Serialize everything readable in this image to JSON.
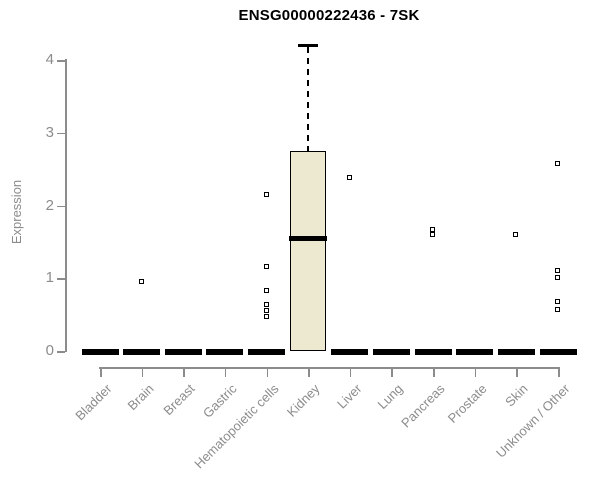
{
  "chart_data": {
    "type": "boxplot",
    "title": "ENSG00000222436 - 7SK",
    "ylabel": "Expression",
    "xlabel": "",
    "yticks": [
      0,
      1,
      2,
      3,
      4
    ],
    "ylim": [
      0,
      4.4
    ],
    "grid": false,
    "legend": "none",
    "box_fill": "#EDE8D0",
    "box_stroke": "#000000",
    "axis_color": "#8c8c8c",
    "tick_text_color": "#8c8c8c",
    "title_color": "#000000",
    "categories": [
      "Bladder",
      "Brain",
      "Breast",
      "Gastric",
      "Hematopoietic cells",
      "Kidney",
      "Liver",
      "Lung",
      "Pancreas",
      "Prostate",
      "Skin",
      "Unknown / Other"
    ],
    "boxes": [
      {
        "category": "Bladder",
        "min": 0,
        "q1": 0,
        "median": 0,
        "q3": 0,
        "max": 0,
        "outliers": []
      },
      {
        "category": "Brain",
        "min": 0,
        "q1": 0,
        "median": 0,
        "q3": 0,
        "max": 0,
        "outliers": [
          0.95
        ]
      },
      {
        "category": "Breast",
        "min": 0,
        "q1": 0,
        "median": 0,
        "q3": 0,
        "max": 0,
        "outliers": []
      },
      {
        "category": "Gastric",
        "min": 0,
        "q1": 0,
        "median": 0,
        "q3": 0,
        "max": 0,
        "outliers": []
      },
      {
        "category": "Hematopoietic cells",
        "min": 0,
        "q1": 0,
        "median": 0,
        "q3": 0,
        "max": 0,
        "outliers": [
          2.15,
          1.15,
          0.83,
          0.63,
          0.55,
          0.47
        ]
      },
      {
        "category": "Kidney",
        "min": 0,
        "q1": 0,
        "median": 1.55,
        "q3": 2.75,
        "max": 4.2,
        "outliers": []
      },
      {
        "category": "Liver",
        "min": 0,
        "q1": 0,
        "median": 0,
        "q3": 0,
        "max": 0,
        "outliers": [
          2.38
        ]
      },
      {
        "category": "Lung",
        "min": 0,
        "q1": 0,
        "median": 0,
        "q3": 0,
        "max": 0,
        "outliers": []
      },
      {
        "category": "Pancreas",
        "min": 0,
        "q1": 0,
        "median": 0,
        "q3": 0,
        "max": 0,
        "outliers": [
          1.66,
          1.6
        ]
      },
      {
        "category": "Prostate",
        "min": 0,
        "q1": 0,
        "median": 0,
        "q3": 0,
        "max": 0,
        "outliers": [],
        "note": ""
      },
      {
        "category": "Skin",
        "min": 0,
        "q1": 0,
        "median": 0,
        "q3": 0,
        "max": 0,
        "outliers": [
          1.6
        ]
      },
      {
        "category": "Unknown / Other",
        "min": 0,
        "q1": 0,
        "median": 0,
        "q3": 0,
        "max": 0,
        "outliers": [
          2.57,
          1.1,
          1.0,
          0.68,
          0.56
        ]
      }
    ]
  }
}
